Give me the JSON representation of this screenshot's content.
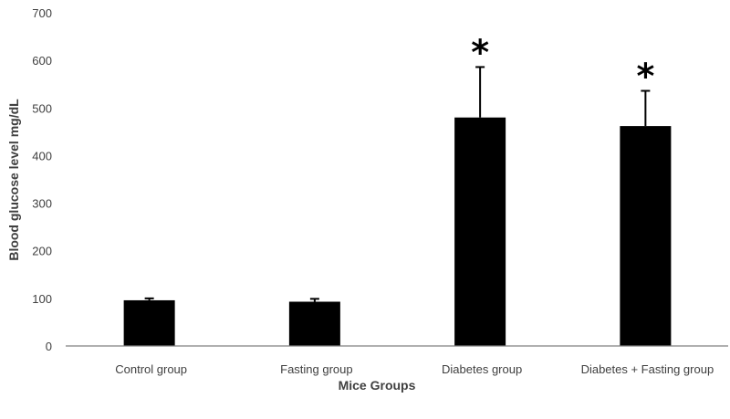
{
  "chart_data": {
    "type": "bar",
    "categories": [
      "Control group",
      "Fasting group",
      "Diabetes group",
      "Diabetes + Fasting group"
    ],
    "values": [
      96,
      93,
      480,
      462
    ],
    "error_upper": [
      100,
      99,
      586,
      536
    ],
    "annotations": [
      "",
      "",
      "*",
      "*"
    ],
    "xlabel": "Mice Groups",
    "ylabel": "Blood glucose level mg/dL",
    "ylim": [
      0,
      700
    ],
    "yticks": [
      0,
      100,
      200,
      300,
      400,
      500,
      600,
      700
    ],
    "grid": false,
    "legend": "none",
    "bar_color": "#000000",
    "axis_color": "#808080",
    "text_color": "#404040"
  }
}
